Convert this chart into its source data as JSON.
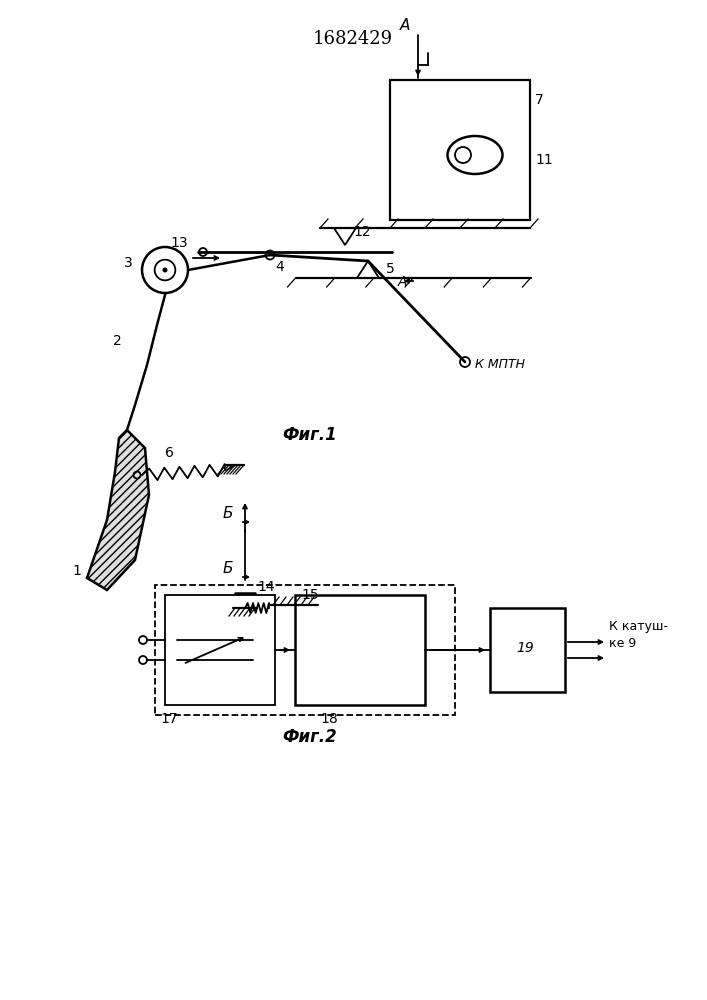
{
  "title": "1682429",
  "fig1_caption": "Фиг.1",
  "fig2_caption": "Фиг.2",
  "bg_color": "#ffffff",
  "line_color": "#000000"
}
